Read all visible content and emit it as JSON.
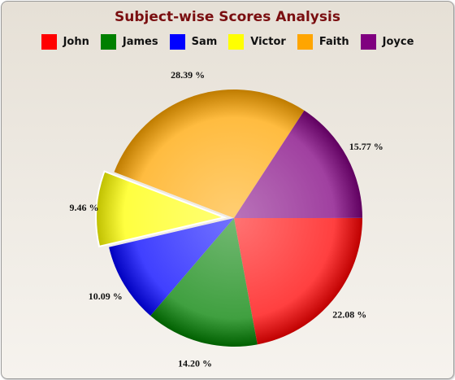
{
  "chart_data": {
    "type": "pie",
    "title": "Subject-wise Scores Analysis",
    "legend_position": "top",
    "slices": [
      {
        "name": "John",
        "percent": 22.08,
        "label": "22.08 %",
        "color": "#ff0000",
        "exploded": false
      },
      {
        "name": "James",
        "percent": 14.2,
        "label": "14.20 %",
        "color": "#008000",
        "exploded": false
      },
      {
        "name": "Sam",
        "percent": 10.09,
        "label": "10.09 %",
        "color": "#0000ff",
        "exploded": false
      },
      {
        "name": "Victor",
        "percent": 9.46,
        "label": "9.46 %",
        "color": "#ffff00",
        "exploded": true
      },
      {
        "name": "Faith",
        "percent": 28.39,
        "label": "28.39 %",
        "color": "#ffa500",
        "exploded": false
      },
      {
        "name": "Joyce",
        "percent": 15.77,
        "label": "15.77 %",
        "color": "#800080",
        "exploded": false
      }
    ]
  }
}
